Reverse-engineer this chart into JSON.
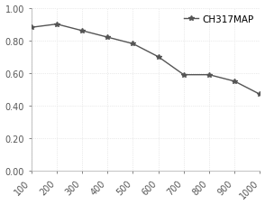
{
  "x": [
    100,
    200,
    300,
    400,
    500,
    600,
    700,
    800,
    900,
    1000
  ],
  "y": [
    0.88,
    0.9,
    0.86,
    0.82,
    0.78,
    0.7,
    0.59,
    0.59,
    0.55,
    0.47
  ],
  "line_color": "#555555",
  "marker": "*",
  "marker_color": "#555555",
  "marker_size": 4,
  "legend_label": "CH317MAP",
  "ylim": [
    0.0,
    1.0
  ],
  "yticks": [
    0.0,
    0.2,
    0.4,
    0.6,
    0.8,
    1.0
  ],
  "xticks": [
    100,
    200,
    300,
    400,
    500,
    600,
    700,
    800,
    900,
    1000
  ],
  "background_color": "#ffffff",
  "grid_color": "#d8d8d8",
  "tick_label_fontsize": 7,
  "legend_fontsize": 7.5,
  "linewidth": 1.0
}
